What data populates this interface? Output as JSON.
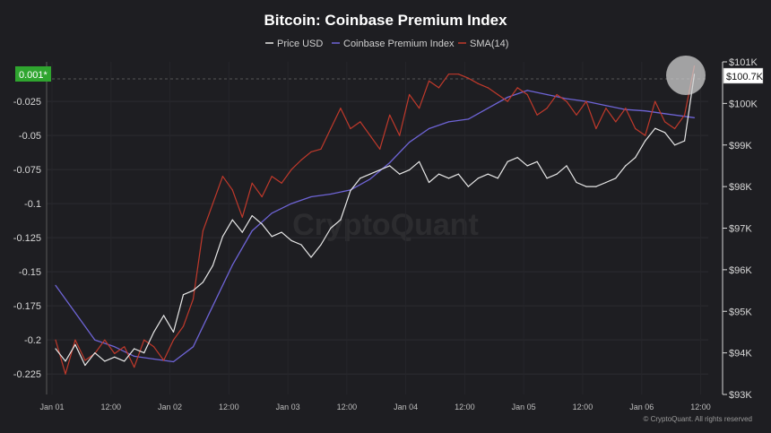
{
  "chart_data": {
    "type": "line",
    "title": "Bitcoin: Coinbase Premium Index",
    "legend": [
      {
        "key": "price",
        "label": "Price USD",
        "color": "#e8e8e8"
      },
      {
        "key": "premium",
        "label": "Coinbase Premium Index",
        "color": "#6e64d6"
      },
      {
        "key": "sma",
        "label": "SMA(14)",
        "color": "#c0392b"
      }
    ],
    "legend_position": "top-center",
    "watermark": "CryptoQuant",
    "footer": "© CryptoQuant. All rights reserved",
    "current_premium_label": "0.001*",
    "current_price_label": "$100.7K",
    "x_ticks": [
      "Jan 01",
      "12:00",
      "Jan 02",
      "12:00",
      "Jan 03",
      "12:00",
      "Jan 04",
      "12:00",
      "Jan 05",
      "12:00",
      "Jan 06",
      "12:00"
    ],
    "x_range_hours": [
      0,
      131
    ],
    "left_axis": {
      "label": "",
      "range": [
        -0.24,
        0.004
      ],
      "ticks": [
        {
          "v": -0.025,
          "label": "-0.025"
        },
        {
          "v": -0.05,
          "label": "-0.05"
        },
        {
          "v": -0.075,
          "label": "-0.075"
        },
        {
          "v": -0.1,
          "label": "-0.1"
        },
        {
          "v": -0.125,
          "label": "-0.125"
        },
        {
          "v": -0.15,
          "label": "-0.15"
        },
        {
          "v": -0.175,
          "label": "-0.175"
        },
        {
          "v": -0.2,
          "label": "-0.2"
        },
        {
          "v": -0.225,
          "label": "-0.225"
        }
      ]
    },
    "right_axis": {
      "label": "",
      "range": [
        93000,
        101000
      ],
      "ticks": [
        {
          "v": 101000,
          "label": "$101K"
        },
        {
          "v": 100000,
          "label": "$100K"
        },
        {
          "v": 99000,
          "label": "$99K"
        },
        {
          "v": 98000,
          "label": "$98K"
        },
        {
          "v": 97000,
          "label": "$97K"
        },
        {
          "v": 96000,
          "label": "$96K"
        },
        {
          "v": 95000,
          "label": "$95K"
        },
        {
          "v": 94000,
          "label": "$94K"
        },
        {
          "v": 93000,
          "label": "$93K"
        }
      ]
    },
    "series": [
      {
        "name": "Price USD",
        "color": "#e8e8e8",
        "axis": "right",
        "x_hours": [
          0,
          2,
          4,
          6,
          8,
          10,
          12,
          14,
          16,
          18,
          20,
          22,
          24,
          26,
          28,
          30,
          32,
          34,
          36,
          38,
          40,
          42,
          44,
          46,
          48,
          50,
          52,
          54,
          56,
          58,
          60,
          62,
          64,
          66,
          68,
          70,
          72,
          74,
          76,
          78,
          80,
          82,
          84,
          86,
          88,
          90,
          92,
          94,
          96,
          98,
          100,
          102,
          104,
          106,
          108,
          110,
          112,
          114,
          116,
          118,
          120,
          122,
          124,
          126,
          128,
          130
        ],
        "values": [
          94100,
          93800,
          94200,
          93700,
          94000,
          93800,
          93900,
          93800,
          94100,
          94000,
          94500,
          94900,
          94500,
          95400,
          95500,
          95700,
          96100,
          96800,
          97200,
          96900,
          97300,
          97100,
          96800,
          96900,
          96700,
          96600,
          96300,
          96600,
          97000,
          97200,
          97900,
          98200,
          98300,
          98400,
          98500,
          98300,
          98400,
          98600,
          98100,
          98300,
          98200,
          98300,
          98000,
          98200,
          98300,
          98200,
          98600,
          98700,
          98500,
          98600,
          98200,
          98300,
          98500,
          98100,
          98000,
          98000,
          98100,
          98200,
          98500,
          98700,
          99100,
          99400,
          99300,
          99000,
          99100,
          100700
        ]
      },
      {
        "name": "Coinbase Premium Index",
        "color": "#6e64d6",
        "axis": "left",
        "x_hours": [
          0,
          4,
          8,
          12,
          16,
          20,
          24,
          28,
          32,
          36,
          40,
          44,
          48,
          52,
          56,
          60,
          64,
          68,
          72,
          76,
          80,
          84,
          88,
          92,
          96,
          100,
          104,
          108,
          112,
          116,
          120,
          124,
          128,
          130
        ],
        "values": [
          -0.16,
          -0.18,
          -0.2,
          -0.205,
          -0.212,
          -0.214,
          -0.216,
          -0.205,
          -0.175,
          -0.145,
          -0.12,
          -0.107,
          -0.1,
          -0.095,
          -0.093,
          -0.09,
          -0.082,
          -0.07,
          -0.055,
          -0.045,
          -0.04,
          -0.038,
          -0.03,
          -0.022,
          -0.017,
          -0.02,
          -0.023,
          -0.025,
          -0.028,
          -0.031,
          -0.032,
          -0.034,
          -0.036,
          -0.037
        ]
      },
      {
        "name": "SMA(14)",
        "color": "#c0392b",
        "axis": "left",
        "x_hours": [
          0,
          2,
          4,
          6,
          8,
          10,
          12,
          14,
          16,
          18,
          20,
          22,
          24,
          26,
          28,
          30,
          32,
          34,
          36,
          38,
          40,
          42,
          44,
          46,
          48,
          50,
          52,
          54,
          56,
          58,
          60,
          62,
          64,
          66,
          68,
          70,
          72,
          74,
          76,
          78,
          80,
          82,
          84,
          86,
          88,
          90,
          92,
          94,
          96,
          98,
          100,
          102,
          104,
          106,
          108,
          110,
          112,
          114,
          116,
          118,
          120,
          122,
          124,
          126,
          128,
          130
        ],
        "values": [
          -0.2,
          -0.225,
          -0.2,
          -0.215,
          -0.21,
          -0.2,
          -0.21,
          -0.205,
          -0.22,
          -0.2,
          -0.205,
          -0.215,
          -0.2,
          -0.19,
          -0.17,
          -0.12,
          -0.1,
          -0.08,
          -0.09,
          -0.11,
          -0.085,
          -0.095,
          -0.08,
          -0.085,
          -0.075,
          -0.068,
          -0.062,
          -0.06,
          -0.045,
          -0.03,
          -0.045,
          -0.04,
          -0.05,
          -0.06,
          -0.035,
          -0.05,
          -0.02,
          -0.03,
          -0.01,
          -0.015,
          -0.005,
          -0.005,
          -0.008,
          -0.012,
          -0.015,
          -0.02,
          -0.025,
          -0.015,
          -0.02,
          -0.035,
          -0.03,
          -0.02,
          -0.025,
          -0.035,
          -0.025,
          -0.045,
          -0.03,
          -0.04,
          -0.03,
          -0.045,
          -0.05,
          -0.025,
          -0.04,
          -0.045,
          -0.035,
          0.001
        ]
      }
    ],
    "grid": true
  }
}
